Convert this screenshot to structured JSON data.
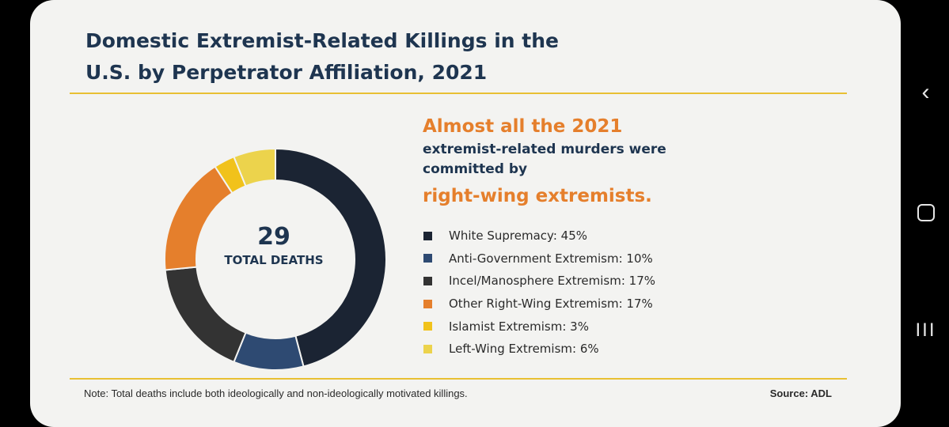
{
  "card": {
    "title": "Domestic Extremist-Related Killings in the U.S. by Perpetrator Affiliation, 2021",
    "center_value": "29",
    "center_label": "TOTAL DEATHS",
    "headline": {
      "line1": "Almost all the 2021",
      "line2": "extremist-related murders were",
      "line3": "committed by",
      "line4": "right-wing extremists."
    },
    "note": "Note: Total deaths include both ideologically and non-ideologically motivated killings.",
    "source": "Source: ADL"
  },
  "chart_data": {
    "type": "pie",
    "title": "Domestic Extremist-Related Killings in the U.S. by Perpetrator Affiliation, 2021",
    "donut": true,
    "total": 29,
    "categories": [
      "White Supremacy",
      "Anti-Government Extremism",
      "Incel/Manosphere Extremism",
      "Other Right-Wing Extremism",
      "Islamist Extremism",
      "Left-Wing Extremism"
    ],
    "values": [
      45,
      10,
      17,
      17,
      3,
      6
    ],
    "legend_labels": [
      "White Supremacy: 45%",
      "Anti-Government Extremism: 10%",
      "Incel/Manosphere Extremism: 17%",
      "Other Right-Wing Extremism: 17%",
      "Islamist Extremism: 3%",
      "Left-Wing Extremism: 6%"
    ],
    "colors": [
      "#1b2433",
      "#2e4a72",
      "#333333",
      "#e57f2c",
      "#f1c21b",
      "#ecd34c"
    ],
    "legend_position": "right"
  },
  "nav": {
    "back": "‹",
    "recent": "III"
  }
}
